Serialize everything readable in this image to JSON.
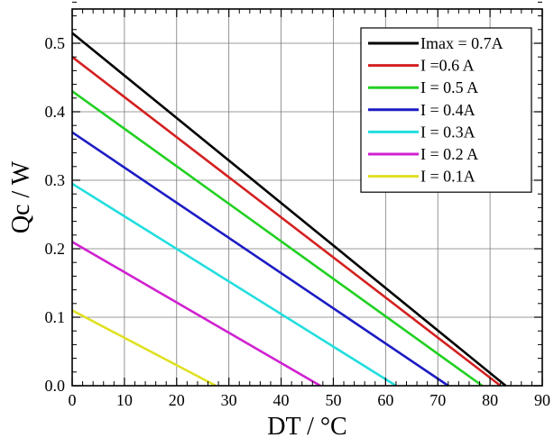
{
  "chart_data": {
    "type": "line",
    "title": "",
    "xlabel": "DT / °C",
    "ylabel": "Qc / W",
    "xlim": [
      0,
      90
    ],
    "ylim": [
      0,
      0.55
    ],
    "xticks": [
      0,
      10,
      20,
      30,
      40,
      50,
      60,
      70,
      80,
      90
    ],
    "yticks": [
      0.0,
      0.1,
      0.2,
      0.3,
      0.4,
      0.5
    ],
    "ytick_labels": [
      "0.0",
      "0.1",
      "0.2",
      "0.3",
      "0.4",
      "0.5"
    ],
    "grid": true,
    "legend_position": "top-right",
    "series": [
      {
        "name": "Imax = 0.7A",
        "color": "#000000",
        "x": [
          0,
          83
        ],
        "y": [
          0.515,
          0
        ]
      },
      {
        "name": "I =0.6 A",
        "color": "#d42020",
        "x": [
          0,
          82
        ],
        "y": [
          0.48,
          0
        ]
      },
      {
        "name": "I = 0.5 A",
        "color": "#22d022",
        "x": [
          0,
          78.5
        ],
        "y": [
          0.43,
          0
        ]
      },
      {
        "name": "I = 0.4A",
        "color": "#1c1cc4",
        "x": [
          0,
          72
        ],
        "y": [
          0.37,
          0
        ]
      },
      {
        "name": "I = 0.3A",
        "color": "#22dede",
        "x": [
          0,
          62
        ],
        "y": [
          0.295,
          0
        ]
      },
      {
        "name": "I = 0.2 A",
        "color": "#d020d0",
        "x": [
          0,
          47.5
        ],
        "y": [
          0.21,
          0
        ]
      },
      {
        "name": "I = 0.1A",
        "color": "#e0e022",
        "x": [
          0,
          27.5
        ],
        "y": [
          0.11,
          0
        ]
      }
    ]
  }
}
